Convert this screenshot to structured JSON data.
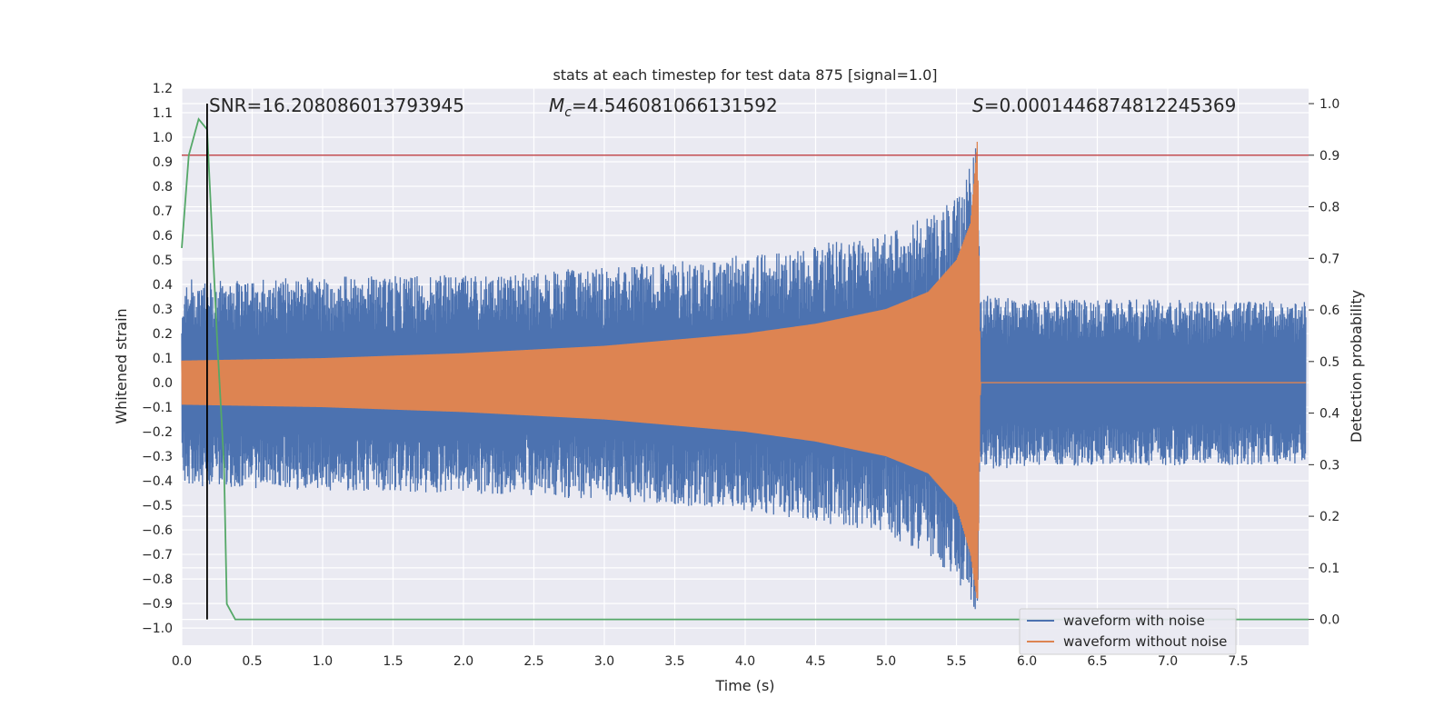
{
  "chart_data": {
    "type": "line",
    "title": "stats at each timestep for test data 875 [signal=1.0]",
    "xlabel": "Time (s)",
    "ylabel_left": "Whitened strain",
    "ylabel_right": "Detection probability",
    "xlim": [
      0.0,
      8.0
    ],
    "ylim_left": [
      -1.07,
      1.2
    ],
    "ylim_right": [
      -0.05,
      1.03
    ],
    "grid": true,
    "x_ticks": [
      "0.0",
      "0.5",
      "1.0",
      "1.5",
      "2.0",
      "2.5",
      "3.0",
      "3.5",
      "4.0",
      "4.5",
      "5.0",
      "5.5",
      "6.0",
      "6.5",
      "7.0",
      "7.5"
    ],
    "x_tick_values": [
      0.0,
      0.5,
      1.0,
      1.5,
      2.0,
      2.5,
      3.0,
      3.5,
      4.0,
      4.5,
      5.0,
      5.5,
      6.0,
      6.5,
      7.0,
      7.5
    ],
    "y_ticks_left": [
      "1.2",
      "1.1",
      "1.0",
      "0.9",
      "0.8",
      "0.7",
      "0.6",
      "0.5",
      "0.4",
      "0.3",
      "0.2",
      "0.1",
      "0.0",
      "−0.1",
      "−0.2",
      "−0.3",
      "−0.4",
      "−0.5",
      "−0.6",
      "−0.7",
      "−0.8",
      "−0.9",
      "−1.0"
    ],
    "y_tick_values_left": [
      1.2,
      1.1,
      1.0,
      0.9,
      0.8,
      0.7,
      0.6,
      0.5,
      0.4,
      0.3,
      0.2,
      0.1,
      0.0,
      -0.1,
      -0.2,
      -0.3,
      -0.4,
      -0.5,
      -0.6,
      -0.7,
      -0.8,
      -0.9,
      -1.0
    ],
    "y_ticks_right": [
      "1.0",
      "0.9",
      "0.8",
      "0.7",
      "0.6",
      "0.5",
      "0.4",
      "0.3",
      "0.2",
      "0.1",
      "0.0"
    ],
    "y_tick_values_right": [
      1.0,
      0.9,
      0.8,
      0.7,
      0.6,
      0.5,
      0.4,
      0.3,
      0.2,
      0.1,
      0.0
    ],
    "annotations": {
      "snr": "SNR=16.208086013793945",
      "mc_symbol": "M",
      "mc_subscript": "c",
      "mc_value": "=4.546081066131592",
      "s_symbol": "S",
      "s_value": "=0.0001446874812245369"
    },
    "series": [
      {
        "name": "waveform with noise",
        "color": "#4c72b0",
        "envelope": {
          "x": [
            0.0,
            1.0,
            2.0,
            3.0,
            4.0,
            4.5,
            5.0,
            5.3,
            5.5,
            5.6,
            5.65,
            5.67,
            6.0,
            7.0,
            8.0
          ],
          "upper": [
            0.42,
            0.43,
            0.44,
            0.47,
            0.52,
            0.56,
            0.62,
            0.68,
            0.75,
            0.9,
            1.0,
            0.36,
            0.34,
            0.34,
            0.33
          ],
          "lower": [
            -0.42,
            -0.44,
            -0.45,
            -0.48,
            -0.52,
            -0.57,
            -0.62,
            -0.7,
            -0.8,
            -0.95,
            -1.0,
            -0.36,
            -0.34,
            -0.34,
            -0.33
          ]
        }
      },
      {
        "name": "waveform without noise",
        "color": "#dd8452",
        "envelope": {
          "x": [
            0.0,
            1.0,
            2.0,
            3.0,
            4.0,
            4.5,
            5.0,
            5.3,
            5.5,
            5.6,
            5.65,
            5.67,
            8.0
          ],
          "upper": [
            0.09,
            0.1,
            0.12,
            0.15,
            0.2,
            0.24,
            0.3,
            0.37,
            0.5,
            0.65,
            1.0,
            0.0,
            0.0
          ],
          "lower": [
            -0.09,
            -0.1,
            -0.12,
            -0.15,
            -0.2,
            -0.24,
            -0.3,
            -0.37,
            -0.5,
            -0.7,
            -0.9,
            0.0,
            0.0
          ]
        }
      },
      {
        "name": "",
        "color": "#55a868",
        "axis": "right",
        "x": [
          0.0,
          0.05,
          0.12,
          0.18,
          0.25,
          0.3,
          0.32,
          0.38,
          8.0
        ],
        "y": [
          0.72,
          0.9,
          0.97,
          0.95,
          0.55,
          0.3,
          0.03,
          0.0,
          0.0
        ]
      }
    ],
    "threshold": {
      "axis": "right",
      "value": 0.9,
      "color": "#c44e52"
    },
    "marker_vline": {
      "x": 0.18,
      "color": "#000000"
    },
    "legend": {
      "placement": "lower-right",
      "items": [
        {
          "label": "waveform with noise",
          "color": "#4c72b0"
        },
        {
          "label": "waveform without noise",
          "color": "#dd8452"
        }
      ]
    },
    "colors": {
      "plot_background": "#eaeaf2",
      "grid": "#ffffff"
    }
  }
}
